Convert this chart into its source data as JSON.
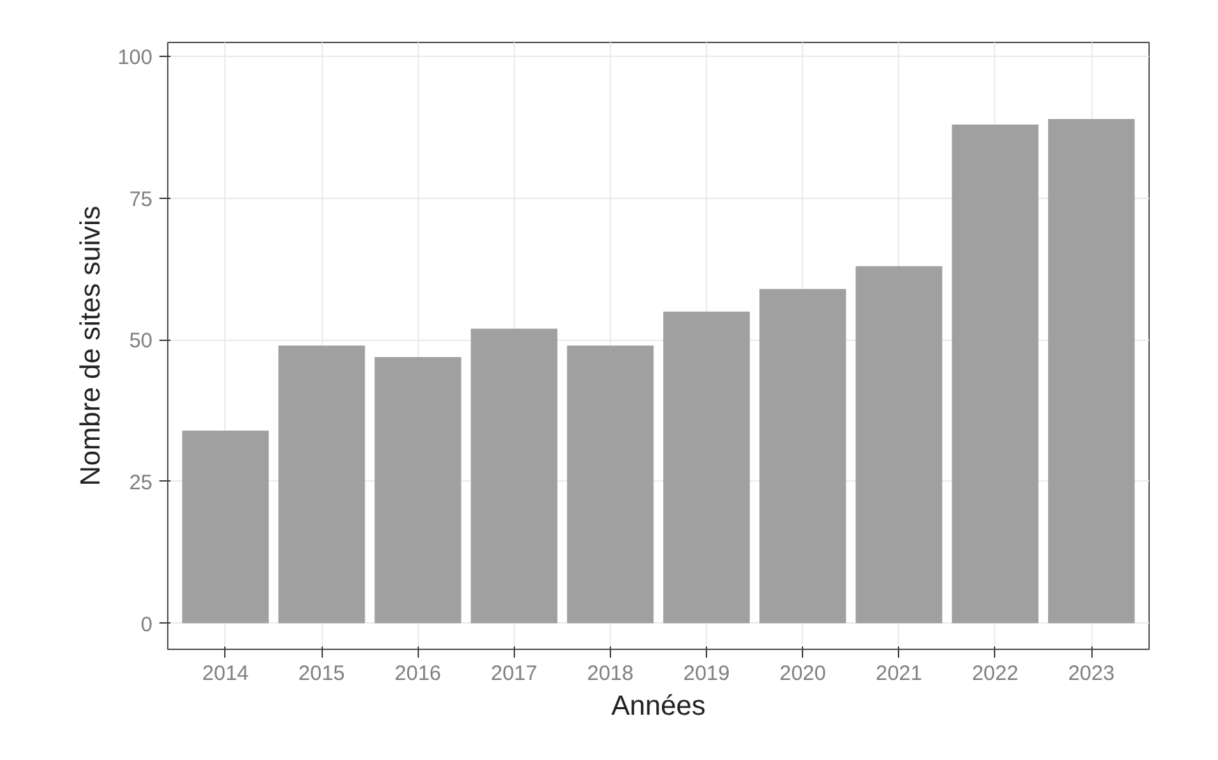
{
  "chart_data": {
    "type": "bar",
    "xlabel": "Années",
    "ylabel": "Nombre de sites suivis",
    "categories": [
      "2014",
      "2015",
      "2016",
      "2017",
      "2018",
      "2019",
      "2020",
      "2021",
      "2022",
      "2023"
    ],
    "values": [
      34,
      49,
      47,
      52,
      49,
      55,
      59,
      63,
      88,
      89
    ],
    "color": "#a0a0a0",
    "ylim": [
      -4.6,
      102.5
    ],
    "yticks": [
      0,
      25,
      50,
      75,
      100
    ],
    "grid": true
  }
}
